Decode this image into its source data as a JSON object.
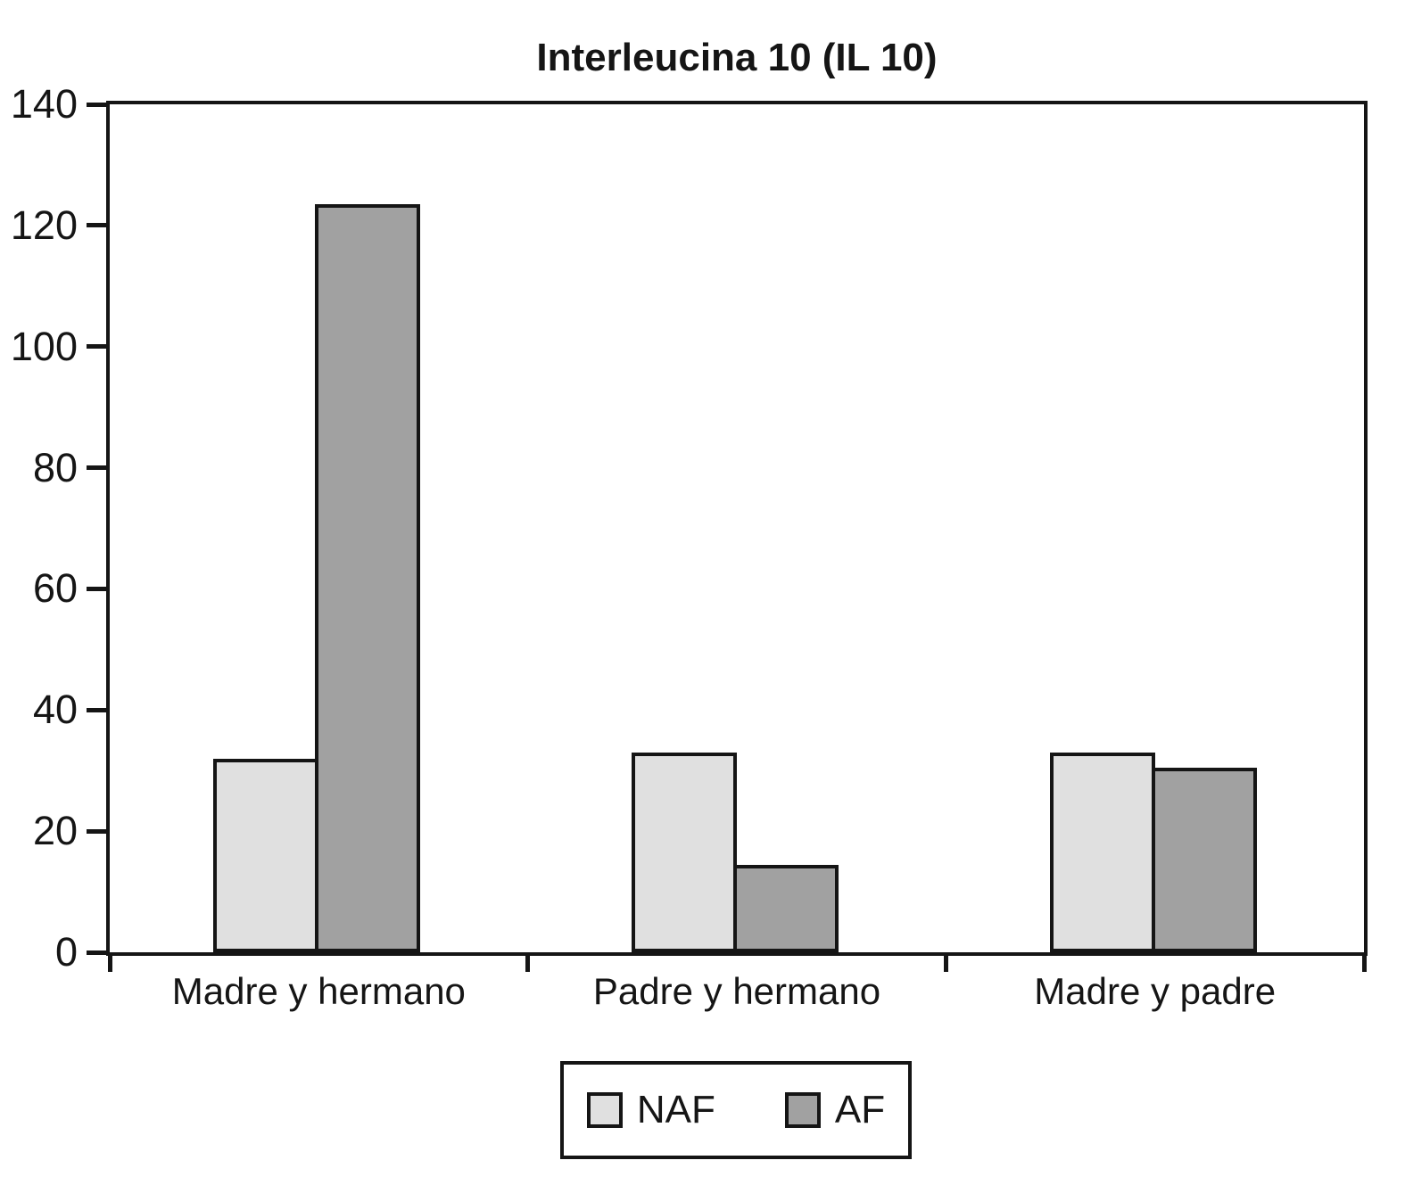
{
  "chart_data": {
    "type": "bar",
    "title": "Interleucina 10 (IL 10)",
    "categories": [
      "Madre y hermano",
      "Padre y hermano",
      "Madre y padre"
    ],
    "series": [
      {
        "name": "NAF",
        "color": "#e0e0e0",
        "values": [
          32,
          33,
          33
        ]
      },
      {
        "name": "AF",
        "color": "#a1a1a1",
        "values": [
          123.5,
          14.5,
          30.5
        ]
      }
    ],
    "xlabel": "",
    "ylabel": "",
    "ylim": [
      0,
      140
    ],
    "yticks": [
      0,
      20,
      40,
      60,
      80,
      100,
      120,
      140
    ],
    "grid": false,
    "legend": {
      "position": "bottom",
      "entries": [
        "NAF",
        "AF"
      ]
    },
    "colors": {
      "axis": "#151515",
      "background": "#ffffff"
    }
  }
}
